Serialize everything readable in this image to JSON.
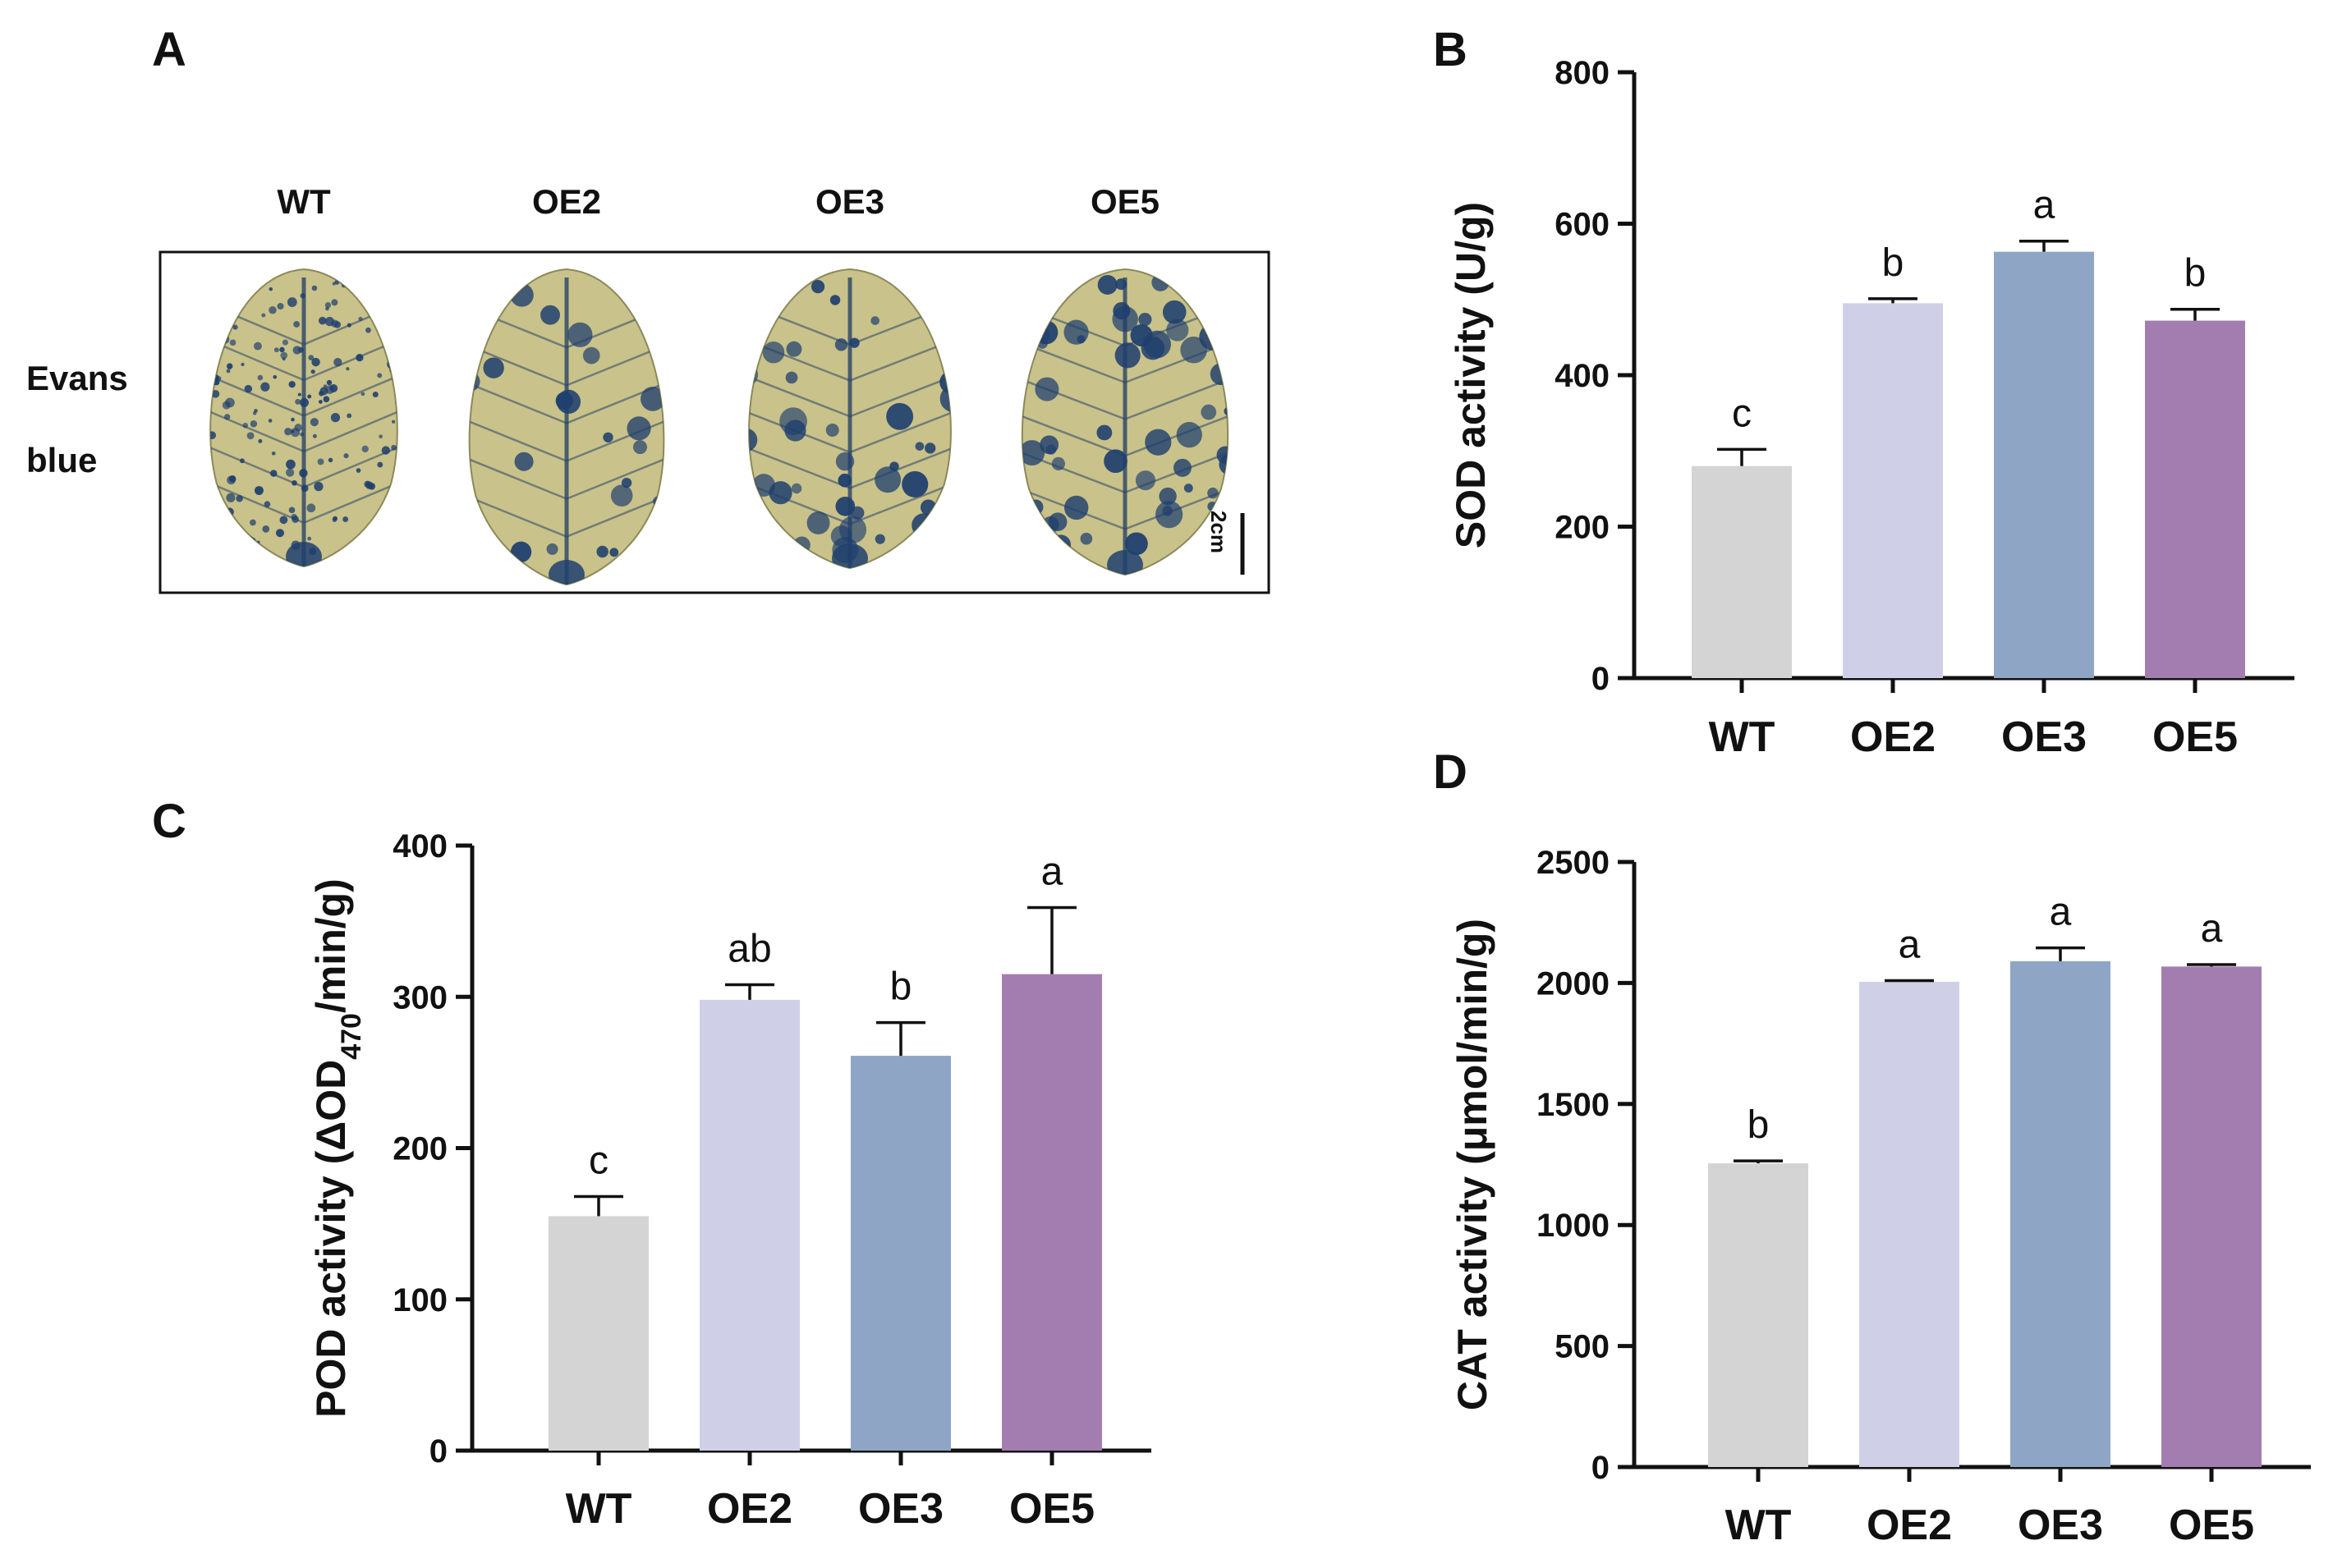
{
  "panel_a": {
    "letter": "A",
    "columns": [
      "WT",
      "OE2",
      "OE3",
      "OE5"
    ],
    "row_label_line1": "Evans",
    "row_label_line2": "blue",
    "scale_label": "2cm",
    "colors": {
      "leaf": "#c9c28a",
      "stain": "#1f3f6e",
      "vein": "#2a4466"
    }
  },
  "chart_data": [
    {
      "panel": "B",
      "type": "bar",
      "categories": [
        "WT",
        "OE2",
        "OE3",
        "OE5"
      ],
      "values": [
        280,
        495,
        563,
        472
      ],
      "errors": [
        22,
        6,
        14,
        15
      ],
      "significance": [
        "c",
        "b",
        "a",
        "b"
      ],
      "ylabel": "SOD activity (U/g)",
      "ylim": [
        0,
        800
      ],
      "yticks": [
        0,
        200,
        400,
        600,
        800
      ],
      "colors": [
        "#d4d4d4",
        "#cfd0e8",
        "#8ea5c6",
        "#a37db0"
      ]
    },
    {
      "panel": "C",
      "type": "bar",
      "categories": [
        "WT",
        "OE2",
        "OE3",
        "OE5"
      ],
      "values": [
        155,
        298,
        261,
        315
      ],
      "errors": [
        13,
        10,
        22,
        44
      ],
      "significance": [
        "c",
        "ab",
        "b",
        "a"
      ],
      "ylabel_prefix": "POD activity (ΔOD",
      "ylabel_sub": "470",
      "ylabel_suffix": "/min/g)",
      "ylim": [
        0,
        400
      ],
      "yticks": [
        0,
        100,
        200,
        300,
        400
      ],
      "colors": [
        "#d4d4d4",
        "#cfd0e8",
        "#8ea5c6",
        "#a37db0"
      ]
    },
    {
      "panel": "D",
      "type": "bar",
      "categories": [
        "WT",
        "OE2",
        "OE3",
        "OE5"
      ],
      "values": [
        1255,
        2005,
        2090,
        2068
      ],
      "errors": [
        10,
        5,
        55,
        8
      ],
      "significance": [
        "b",
        "a",
        "a",
        "a"
      ],
      "ylabel": "CAT activity (μmol/min/g)",
      "ylim": [
        0,
        2500
      ],
      "yticks": [
        0,
        500,
        1000,
        1500,
        2000,
        2500
      ],
      "colors": [
        "#d4d4d4",
        "#cfd0e8",
        "#8ea5c6",
        "#a37db0"
      ]
    }
  ]
}
